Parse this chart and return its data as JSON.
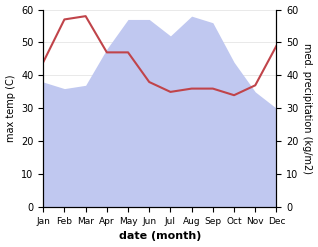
{
  "months": [
    "Jan",
    "Feb",
    "Mar",
    "Apr",
    "May",
    "Jun",
    "Jul",
    "Aug",
    "Sep",
    "Oct",
    "Nov",
    "Dec"
  ],
  "temperature": [
    44,
    57,
    58,
    47,
    47,
    38,
    35,
    36,
    36,
    34,
    37,
    49
  ],
  "precipitation": [
    38,
    36,
    37,
    48,
    57,
    57,
    52,
    58,
    56,
    44,
    35,
    30
  ],
  "temp_color": "#c0444a",
  "precip_fill_color": "#c0c8f0",
  "ylabel_left": "max temp (C)",
  "ylabel_right": "med. precipitation (kg/m2)",
  "xlabel": "date (month)",
  "ylim_left": [
    0,
    60
  ],
  "ylim_right": [
    0,
    60
  ],
  "yticks": [
    0,
    10,
    20,
    30,
    40,
    50,
    60
  ],
  "figsize": [
    3.18,
    2.47
  ],
  "dpi": 100
}
